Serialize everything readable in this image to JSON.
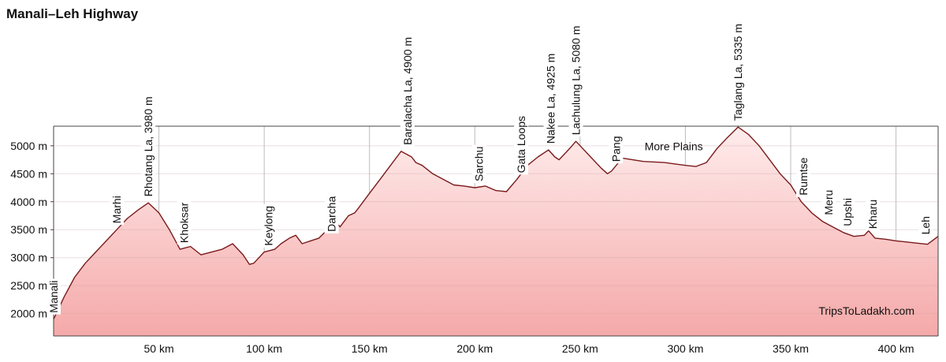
{
  "chart_data": {
    "type": "area",
    "title": "Manali–Leh Highway",
    "xlabel": "",
    "ylabel": "",
    "x_unit": "km",
    "y_unit": "m",
    "xlim": [
      0,
      420
    ],
    "ylim": [
      1600,
      5350
    ],
    "grid": true,
    "x_ticks": [
      {
        "value": 50,
        "label": "50 km"
      },
      {
        "value": 100,
        "label": "100 km"
      },
      {
        "value": 150,
        "label": "150 km"
      },
      {
        "value": 200,
        "label": "200 km"
      },
      {
        "value": 250,
        "label": "250 km"
      },
      {
        "value": 300,
        "label": "300 km"
      },
      {
        "value": 350,
        "label": "350 km"
      },
      {
        "value": 400,
        "label": "400 km"
      }
    ],
    "y_ticks": [
      {
        "value": 2000,
        "label": "2000 m"
      },
      {
        "value": 2500,
        "label": "2500 m"
      },
      {
        "value": 3000,
        "label": "3000 m"
      },
      {
        "value": 3500,
        "label": "3500 m"
      },
      {
        "value": 4000,
        "label": "4000 m"
      },
      {
        "value": 4500,
        "label": "4500 m"
      },
      {
        "value": 5000,
        "label": "5000 m"
      }
    ],
    "profile": {
      "x": [
        0,
        5,
        10,
        15,
        20,
        25,
        30,
        35,
        40,
        45,
        50,
        55,
        60,
        65,
        70,
        75,
        80,
        85,
        90,
        93,
        95,
        100,
        105,
        108,
        112,
        115,
        118,
        122,
        126,
        130,
        134,
        136,
        140,
        143,
        145,
        150,
        155,
        160,
        165,
        170,
        172,
        175,
        180,
        185,
        190,
        195,
        200,
        205,
        210,
        215,
        220,
        225,
        230,
        235,
        238,
        240,
        245,
        248,
        250,
        255,
        260,
        263,
        265,
        270,
        275,
        280,
        290,
        300,
        305,
        310,
        315,
        320,
        325,
        330,
        335,
        340,
        345,
        350,
        355,
        360,
        365,
        370,
        375,
        380,
        385,
        387,
        390,
        395,
        400,
        405,
        410,
        415,
        420
      ],
      "y": [
        1900,
        2300,
        2650,
        2900,
        3100,
        3300,
        3500,
        3700,
        3850,
        3980,
        3800,
        3500,
        3150,
        3200,
        3050,
        3100,
        3150,
        3250,
        3050,
        2880,
        2900,
        3100,
        3150,
        3250,
        3350,
        3400,
        3250,
        3300,
        3350,
        3500,
        3650,
        3550,
        3750,
        3800,
        3900,
        4150,
        4400,
        4650,
        4900,
        4800,
        4700,
        4650,
        4500,
        4400,
        4300,
        4280,
        4250,
        4280,
        4200,
        4180,
        4400,
        4650,
        4800,
        4925,
        4800,
        4750,
        4950,
        5080,
        5000,
        4800,
        4600,
        4500,
        4550,
        4780,
        4750,
        4720,
        4700,
        4650,
        4630,
        4700,
        4950,
        5150,
        5335,
        5200,
        5000,
        4750,
        4500,
        4300,
        4000,
        3800,
        3650,
        3550,
        3450,
        3380,
        3400,
        3480,
        3350,
        3330,
        3300,
        3280,
        3260,
        3240,
        3380
      ]
    },
    "fill_color_top": "#ffecec",
    "fill_color_bottom": "#f5a9a9",
    "line_color": "#7a1a1a",
    "markers": [
      {
        "x": 0,
        "y": 1900,
        "label": "Manali"
      },
      {
        "x": 30,
        "y": 3500,
        "label": "Marhi"
      },
      {
        "x": 45,
        "y": 3980,
        "label": "Rhotang La, 3980 m",
        "value_m": 3980
      },
      {
        "x": 62,
        "y": 3150,
        "label": "Khoksar"
      },
      {
        "x": 102,
        "y": 3100,
        "label": "Keylong"
      },
      {
        "x": 132,
        "y": 3350,
        "label": "Darcha"
      },
      {
        "x": 168,
        "y": 4900,
        "label": "Baralacha La, 4900 m",
        "value_m": 4900
      },
      {
        "x": 202,
        "y": 4250,
        "label": "Sarchu"
      },
      {
        "x": 222,
        "y": 4400,
        "label": "Gata Loops"
      },
      {
        "x": 236,
        "y": 4925,
        "label": "Nakee La, 4925 m",
        "value_m": 4925
      },
      {
        "x": 248,
        "y": 5080,
        "label": "Lachulung La, 5080 m",
        "value_m": 5080
      },
      {
        "x": 267,
        "y": 4600,
        "label": "Pang"
      },
      {
        "x": 325,
        "y": 5335,
        "label": "Taglang La, 5335 m",
        "value_m": 5335
      },
      {
        "x": 356,
        "y": 4000,
        "label": "Rumtse"
      },
      {
        "x": 368,
        "y": 3650,
        "label": "Meru"
      },
      {
        "x": 377,
        "y": 3450,
        "label": "Upshi"
      },
      {
        "x": 389,
        "y": 3400,
        "label": "Kharu"
      },
      {
        "x": 414,
        "y": 3300,
        "label": "Leh"
      }
    ],
    "region_labels": [
      {
        "x": 287,
        "y": 4780,
        "label": "More Plains"
      }
    ],
    "annotations": [
      {
        "label": "TripsToLadakh.com"
      }
    ]
  }
}
